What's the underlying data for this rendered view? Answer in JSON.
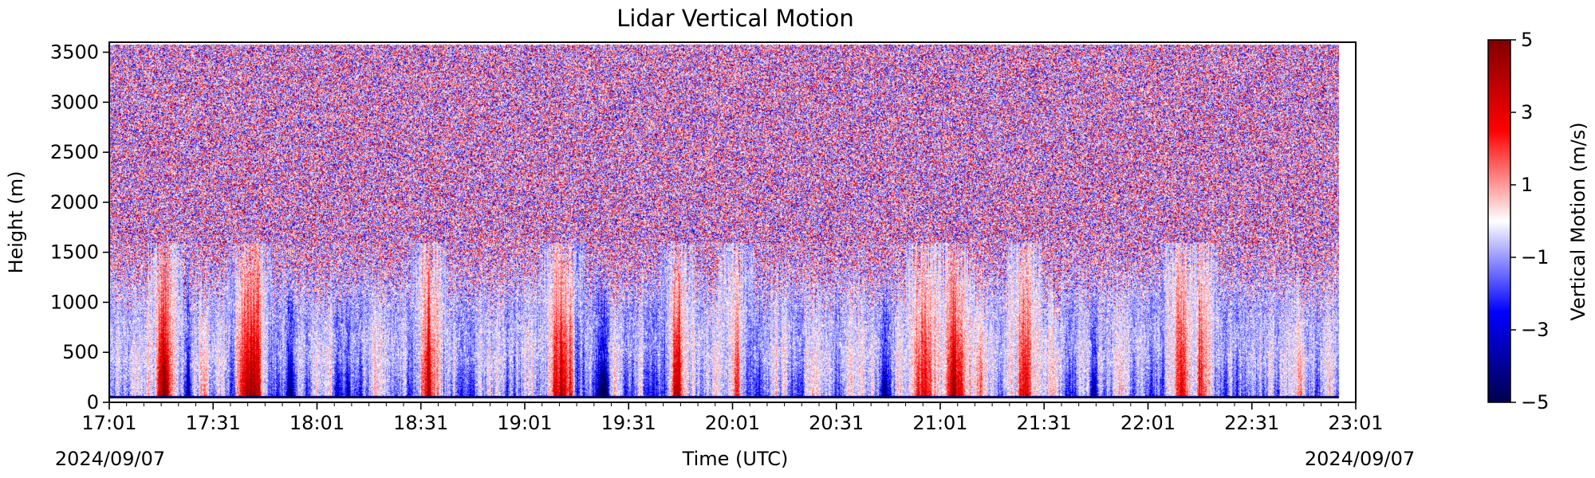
{
  "chart_data": {
    "type": "heatmap",
    "title": "Lidar Vertical Motion",
    "xlabel": "Time (UTC)",
    "ylabel": "Height (m)",
    "colorbar_label": "Vertical Motion (m/s)",
    "colormap": "seismic",
    "colormap_colors": [
      "#00004d",
      "#0000ff",
      "#ffffff",
      "#ff0000",
      "#800000"
    ],
    "x_date_start": "2024/09/07",
    "x_date_end": "2024/09/07",
    "x_ticks": [
      "17:01",
      "17:31",
      "18:01",
      "18:31",
      "19:01",
      "19:31",
      "20:01",
      "20:31",
      "21:01",
      "21:31",
      "22:01",
      "22:31",
      "23:01"
    ],
    "x_range": [
      "17:01",
      "23:01"
    ],
    "data_x_range": [
      "17:01",
      "22:56"
    ],
    "y_ticks": [
      0,
      500,
      1000,
      1500,
      2000,
      2500,
      3000,
      3500
    ],
    "ylim": [
      0,
      3600
    ],
    "data_y_range": [
      60,
      3580
    ],
    "clim": [
      -5,
      5
    ],
    "colorbar_ticks": [
      5,
      3,
      1,
      -1,
      -3,
      -5
    ],
    "noise_transition_height_m": 1100,
    "updraft_plume_times": [
      "17:17",
      "17:40",
      "17:43",
      "18:33",
      "19:10",
      "19:13",
      "19:45",
      "20:02",
      "20:56",
      "21:05",
      "21:25",
      "22:10",
      "22:16"
    ],
    "downdraft_times": [
      "17:24",
      "17:53",
      "18:10",
      "19:23",
      "19:32",
      "20:45",
      "21:45"
    ]
  }
}
